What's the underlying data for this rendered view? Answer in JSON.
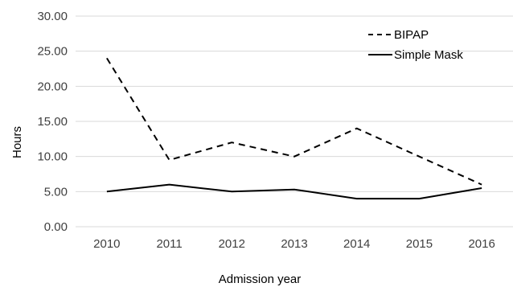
{
  "chart_data": {
    "type": "line",
    "title": "",
    "xlabel": "Admission year",
    "ylabel": "Hours",
    "categories": [
      "2010",
      "2011",
      "2012",
      "2013",
      "2014",
      "2015",
      "2016"
    ],
    "ylim": [
      0,
      30
    ],
    "yticks": [
      "0.00",
      "5.00",
      "10.00",
      "15.00",
      "20.00",
      "25.00",
      "30.00"
    ],
    "grid": true,
    "legend_position": "top-right",
    "series": [
      {
        "name": "BIPAP",
        "style": "dashed",
        "color": "#000000",
        "values": [
          24.0,
          9.5,
          12.0,
          10.0,
          14.0,
          10.0,
          6.0
        ]
      },
      {
        "name": "Simple Mask",
        "style": "solid",
        "color": "#000000",
        "values": [
          5.0,
          6.0,
          5.0,
          5.3,
          4.0,
          4.0,
          5.5
        ]
      }
    ]
  }
}
